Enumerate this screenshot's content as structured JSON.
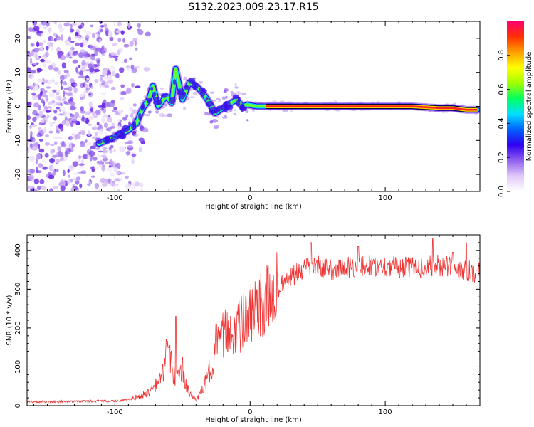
{
  "title": "S132.2023.009.23.17.R15",
  "chart_data": [
    {
      "type": "heatmap",
      "xlabel": "Height of straight line (km)",
      "ylabel": "Frequency (Hz)",
      "xlim": [
        -165,
        170
      ],
      "ylim": [
        -25,
        25
      ],
      "xticks": [
        -100,
        0,
        100
      ],
      "yticks": [
        -20,
        -10,
        0,
        10,
        20
      ],
      "colorbar": {
        "label": "Normalized spectral amplitude",
        "range": [
          0,
          1
        ],
        "ticks": [
          "0.0",
          "0.2",
          "0.4",
          "0.6",
          "0.8"
        ],
        "colors": [
          "#ffffff",
          "#e0c8f8",
          "#9060f0",
          "#3000f0",
          "#0060ff",
          "#00e0ff",
          "#00ff60",
          "#a0ff00",
          "#ffff00",
          "#ffa000",
          "#ff3000",
          "#ff0070"
        ]
      },
      "ridge_x": [
        -112,
        -100,
        -90,
        -84,
        -80,
        -75,
        -72,
        -68,
        -62,
        -58,
        -55,
        -50,
        -45,
        -40,
        -35,
        -30,
        -26,
        -22,
        -18,
        -14,
        -10,
        -6,
        -2,
        5,
        15,
        40,
        80,
        120,
        140,
        150,
        160,
        168
      ],
      "ridge_y": [
        -11,
        -9,
        -7,
        -5,
        -1,
        2,
        6,
        0,
        3,
        1,
        11,
        2,
        7,
        6,
        4,
        1,
        -2,
        -1,
        0,
        1,
        2,
        0,
        0.5,
        0,
        0,
        0,
        0,
        0,
        -0.5,
        -0.5,
        -1,
        -1
      ]
    },
    {
      "type": "line",
      "xlabel": "Height of straight line (km)",
      "ylabel": "SNR (10 * v/v)",
      "xlim": [
        -165,
        170
      ],
      "ylim": [
        0,
        440
      ],
      "xticks": [
        -100,
        0,
        100
      ],
      "yticks": [
        0,
        100,
        200,
        300,
        400
      ],
      "color": "#ee3333",
      "envelope_x": [
        -165,
        -100,
        -90,
        -80,
        -75,
        -70,
        -65,
        -62,
        -60,
        -58,
        -55,
        -52,
        -50,
        -45,
        -40,
        -35,
        -30,
        -25,
        -20,
        -10,
        0,
        10,
        20,
        30,
        40,
        50,
        60,
        80,
        100,
        120,
        140,
        160,
        170
      ],
      "envelope_y": [
        10,
        12,
        15,
        25,
        35,
        50,
        80,
        120,
        140,
        100,
        60,
        90,
        80,
        30,
        15,
        40,
        90,
        140,
        180,
        200,
        230,
        260,
        300,
        330,
        350,
        360,
        350,
        360,
        360,
        355,
        360,
        350,
        340
      ],
      "spikes_x": [
        -62,
        -60,
        -55,
        -50,
        -25,
        45,
        80,
        135,
        150,
        160
      ],
      "spikes_y": [
        170,
        150,
        230,
        125,
        210,
        420,
        410,
        430,
        395,
        420
      ]
    }
  ]
}
